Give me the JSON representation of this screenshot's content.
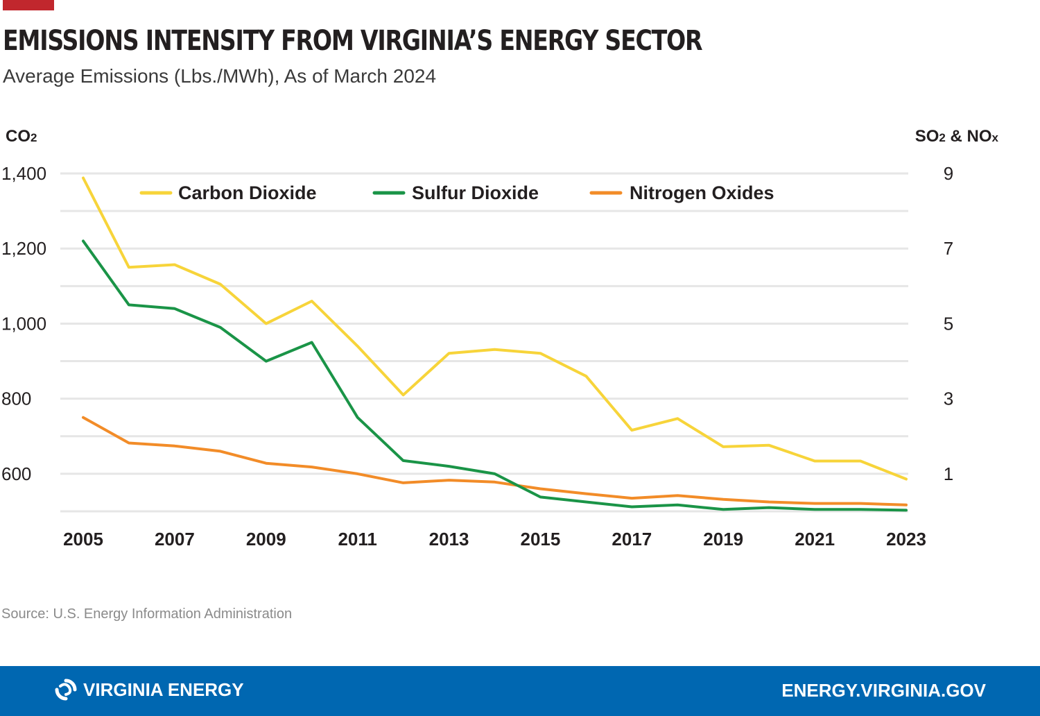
{
  "header": {
    "title": "EMISSIONS INTENSITY FROM VIRGINIA’S ENERGY SECTOR",
    "subtitle": "Average Emissions (Lbs./MWh), As of March 2024"
  },
  "source": "Source: U.S. Energy Information Administration",
  "footer": {
    "brand": "VIRGINIA ENERGY",
    "url": "ENERGY.VIRGINIA.GOV",
    "logo_icon": "virginia-energy-swirl-icon"
  },
  "colors": {
    "accent": "#c1272d",
    "footer_bg": "#0067b1",
    "co2": "#f7d43a",
    "so2": "#1a9447",
    "nox": "#f28c28",
    "grid": "#e6e6e6"
  },
  "chart_data": {
    "type": "line",
    "title": "EMISSIONS INTENSITY FROM VIRGINIA’S ENERGY SECTOR",
    "subtitle": "Average Emissions (Lbs./MWh), As of March 2024",
    "x": [
      2005,
      2006,
      2007,
      2008,
      2009,
      2010,
      2011,
      2012,
      2013,
      2014,
      2015,
      2016,
      2017,
      2018,
      2019,
      2020,
      2021,
      2022,
      2023
    ],
    "x_tick_labels": [
      "2005",
      "2007",
      "2009",
      "2011",
      "2013",
      "2015",
      "2017",
      "2019",
      "2021",
      "2023"
    ],
    "left_axis": {
      "label_main": "CO",
      "label_sub": "2",
      "ylim": [
        500,
        1400
      ],
      "ticks": [
        600,
        800,
        1000,
        1200,
        1400
      ],
      "tick_labels": [
        "600",
        "800",
        "1,000",
        "1,200",
        "1,400"
      ]
    },
    "right_axis": {
      "label_parts": [
        "SO",
        "2",
        " & NO",
        "x"
      ],
      "ylim": [
        0,
        9
      ],
      "ticks": [
        1,
        3,
        5,
        7,
        9
      ],
      "tick_labels": [
        "1",
        "3",
        "5",
        "7",
        "9"
      ]
    },
    "grid": true,
    "legend_position": "top",
    "series": [
      {
        "name": "Carbon Dioxide",
        "axis": "left",
        "color": "#f7d43a",
        "values": [
          1388,
          1150,
          1157,
          1105,
          1000,
          1060,
          940,
          810,
          921,
          931,
          921,
          860,
          716,
          747,
          672,
          676,
          634,
          634,
          586
        ]
      },
      {
        "name": "Sulfur Dioxide",
        "axis": "right",
        "color": "#1a9447",
        "values": [
          7.2,
          5.5,
          5.4,
          4.9,
          4.0,
          4.5,
          2.5,
          1.35,
          1.2,
          1.0,
          0.38,
          0.25,
          0.12,
          0.17,
          0.05,
          0.1,
          0.05,
          0.05,
          0.03
        ]
      },
      {
        "name": "Nitrogen Oxides",
        "axis": "right",
        "color": "#f28c28",
        "values": [
          2.5,
          1.82,
          1.74,
          1.6,
          1.28,
          1.18,
          1.0,
          0.76,
          0.83,
          0.78,
          0.6,
          0.47,
          0.35,
          0.42,
          0.32,
          0.25,
          0.21,
          0.21,
          0.17
        ]
      }
    ]
  }
}
